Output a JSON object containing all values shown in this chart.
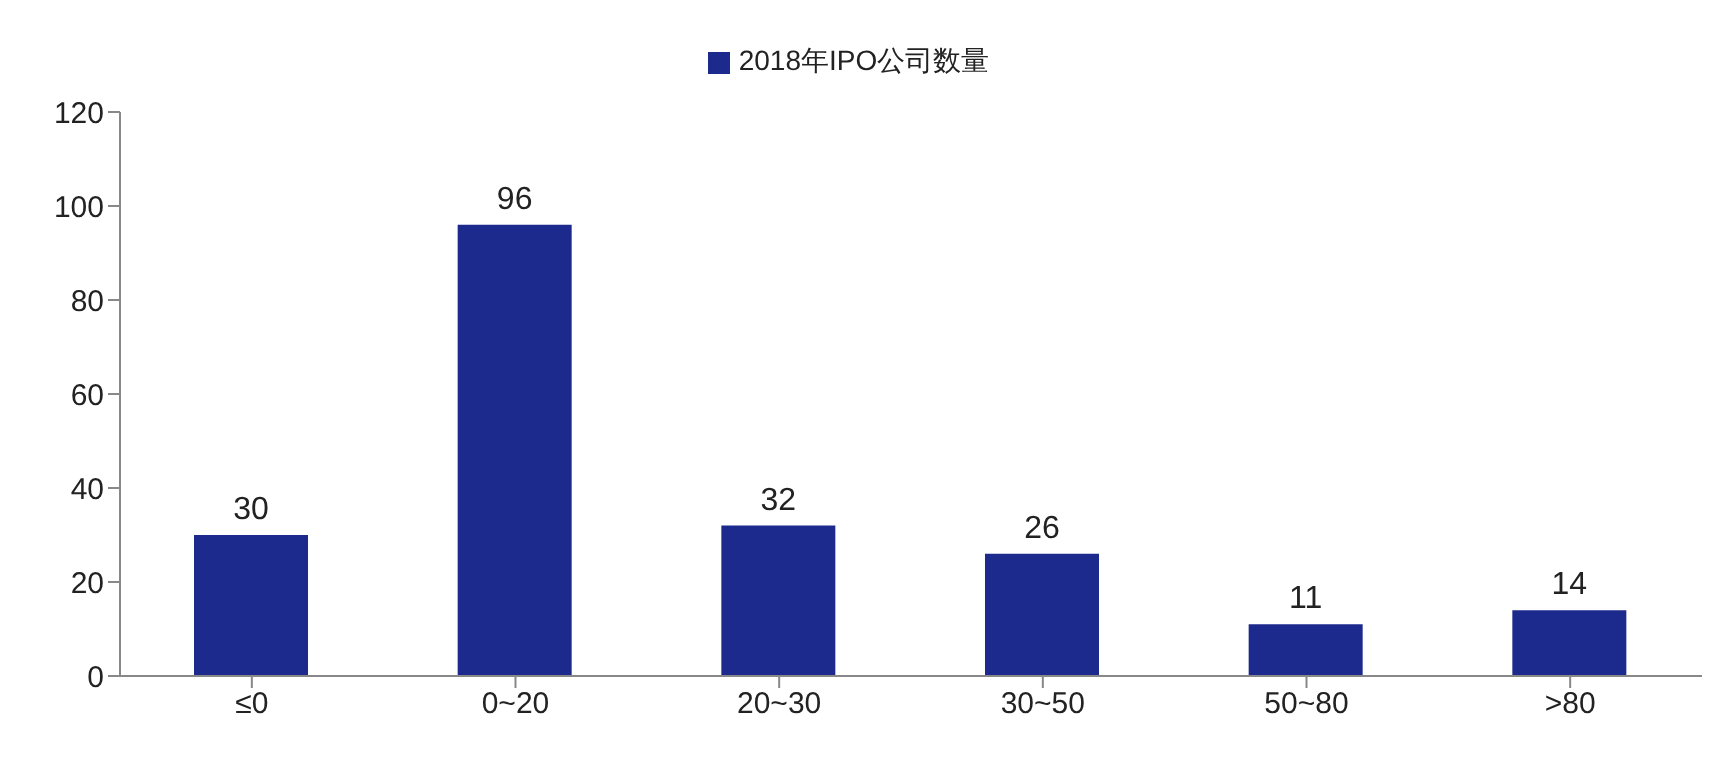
{
  "chart_data": {
    "type": "bar",
    "categories": [
      "≤0",
      "0~20",
      "20~30",
      "30~50",
      "50~80",
      ">80"
    ],
    "series": [
      {
        "name": "2018年IPO公司数量",
        "color": "#1c2a8e",
        "values": [
          30,
          96,
          32,
          26,
          11,
          14
        ]
      }
    ],
    "ylim": [
      0,
      120
    ],
    "yticks": [
      0,
      20,
      40,
      60,
      80,
      100,
      120
    ],
    "grid": false,
    "legend": "top",
    "data_labels": true
  }
}
